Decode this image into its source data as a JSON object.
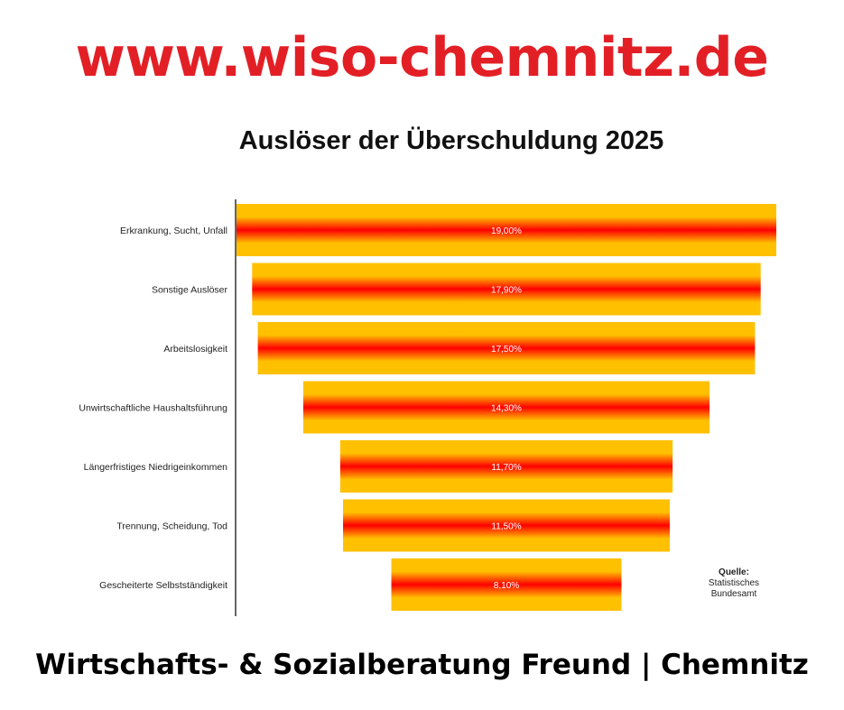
{
  "header": {
    "site_url": "www.wiso-chemnitz.de"
  },
  "footer": {
    "text": "Wirtschafts- & Sozialberatung Freund | Chemnitz"
  },
  "colors": {
    "brand_red": "#e31f26",
    "bar_outer": "#ffc000",
    "bar_center": "#ff0000"
  },
  "chart_data": {
    "type": "bar",
    "orientation": "horizontal-funnel",
    "title": "Auslöser der Überschuldung 2025",
    "categories": [
      "Erkrankung, Sucht, Unfall",
      "Sonstige Auslöser",
      "Arbeitslosigkeit",
      "Unwirtschaftliche Haushaltsführung",
      "Längerfristiges Niedrigeinkommen",
      "Trennung, Scheidung, Tod",
      "Gescheiterte Selbstständigkeit"
    ],
    "values": [
      19.0,
      17.9,
      17.5,
      14.3,
      11.7,
      11.5,
      8.1
    ],
    "data_labels": [
      "19,00%",
      "17,90%",
      "17,50%",
      "14,30%",
      "11,70%",
      "11,50%",
      "8,10%"
    ],
    "grid": false,
    "legend": "none"
  },
  "source": {
    "title": "Quelle:",
    "text": "Statistisches Bundesamt"
  }
}
